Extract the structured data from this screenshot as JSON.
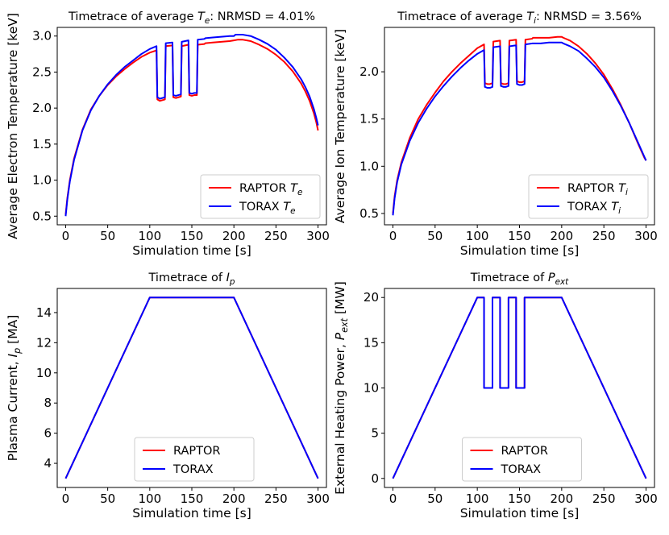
{
  "chart_data": [
    {
      "id": "te",
      "type": "line",
      "title": "Timetrace of average T_e: NRMSD = 4.01%",
      "title_parts": [
        {
          "t": "Timetrace of average "
        },
        {
          "t": "T",
          "i": true
        },
        {
          "t": "e",
          "sub": true,
          "i": true
        },
        {
          "t": ": NRMSD = 4.01%"
        }
      ],
      "xlabel": "Simulation time [s]",
      "ylabel": "Average Electron Temperature [keV]",
      "xlim": [
        -10,
        310
      ],
      "ylim": [
        0.38,
        3.12
      ],
      "xticks": [
        0,
        50,
        100,
        150,
        200,
        250,
        300
      ],
      "yticks": [
        0.5,
        1.0,
        1.5,
        2.0,
        2.5,
        3.0
      ],
      "ytick_labels": [
        "0.5",
        "1.0",
        "1.5",
        "2.0",
        "2.5",
        "3.0"
      ],
      "legend_position": "lower-right",
      "series": [
        {
          "name": "RAPTOR T_e",
          "name_parts": [
            {
              "t": "RAPTOR "
            },
            {
              "t": "T",
              "i": true
            },
            {
              "t": "e",
              "sub": true,
              "i": true
            }
          ],
          "color": "#ff0000",
          "x": [
            0,
            2,
            5,
            10,
            20,
            30,
            40,
            50,
            60,
            70,
            80,
            90,
            100,
            108,
            109,
            112,
            115,
            118,
            119,
            127,
            128,
            131,
            134,
            137,
            138,
            146,
            147,
            150,
            153,
            156,
            157,
            165,
            166,
            175,
            185,
            195,
            200,
            205,
            210,
            220,
            230,
            240,
            250,
            260,
            270,
            280,
            285,
            290,
            295,
            298,
            300
          ],
          "y": [
            0.52,
            0.75,
            1.0,
            1.3,
            1.7,
            1.98,
            2.17,
            2.32,
            2.44,
            2.54,
            2.63,
            2.71,
            2.77,
            2.8,
            2.12,
            2.1,
            2.11,
            2.12,
            2.86,
            2.87,
            2.15,
            2.14,
            2.15,
            2.16,
            2.86,
            2.88,
            2.18,
            2.17,
            2.18,
            2.18,
            2.88,
            2.89,
            2.9,
            2.91,
            2.92,
            2.93,
            2.94,
            2.95,
            2.95,
            2.93,
            2.88,
            2.82,
            2.74,
            2.64,
            2.51,
            2.34,
            2.23,
            2.1,
            1.93,
            1.8,
            1.69
          ]
        },
        {
          "name": "TORAX T_e",
          "name_parts": [
            {
              "t": "TORAX "
            },
            {
              "t": "T",
              "i": true
            },
            {
              "t": "e",
              "sub": true,
              "i": true
            }
          ],
          "color": "#0000ff",
          "x": [
            0,
            2,
            5,
            10,
            20,
            30,
            40,
            50,
            60,
            70,
            80,
            90,
            100,
            108,
            109,
            112,
            115,
            118,
            119,
            127,
            128,
            131,
            134,
            137,
            138,
            146,
            147,
            150,
            153,
            156,
            157,
            165,
            166,
            175,
            185,
            195,
            200,
            202,
            205,
            210,
            220,
            230,
            240,
            250,
            260,
            270,
            280,
            285,
            290,
            295,
            298,
            300
          ],
          "y": [
            0.5,
            0.73,
            0.98,
            1.28,
            1.69,
            1.97,
            2.17,
            2.33,
            2.46,
            2.57,
            2.66,
            2.75,
            2.82,
            2.86,
            2.15,
            2.13,
            2.14,
            2.15,
            2.9,
            2.91,
            2.18,
            2.17,
            2.18,
            2.19,
            2.92,
            2.94,
            2.21,
            2.2,
            2.21,
            2.21,
            2.95,
            2.96,
            2.97,
            2.98,
            2.99,
            3.0,
            3.0,
            3.02,
            3.02,
            3.02,
            3.0,
            2.95,
            2.89,
            2.81,
            2.7,
            2.57,
            2.4,
            2.29,
            2.16,
            1.99,
            1.86,
            1.76
          ]
        }
      ]
    },
    {
      "id": "ti",
      "type": "line",
      "title": "Timetrace of average T_i: NRMSD = 3.56%",
      "title_parts": [
        {
          "t": "Timetrace of average "
        },
        {
          "t": "T",
          "i": true
        },
        {
          "t": "i",
          "sub": true,
          "i": true
        },
        {
          "t": ": NRMSD = 3.56%"
        }
      ],
      "xlabel": "Simulation time [s]",
      "ylabel": "Average Ion Temperature [keV]",
      "xlim": [
        -10,
        310
      ],
      "ylim": [
        0.38,
        2.47
      ],
      "xticks": [
        0,
        50,
        100,
        150,
        200,
        250,
        300
      ],
      "yticks": [
        0.5,
        1.0,
        1.5,
        2.0
      ],
      "ytick_labels": [
        "0.5",
        "1.0",
        "1.5",
        "2.0"
      ],
      "legend_position": "lower-right",
      "series": [
        {
          "name": "RAPTOR T_i",
          "name_parts": [
            {
              "t": "RAPTOR "
            },
            {
              "t": "T",
              "i": true
            },
            {
              "t": "i",
              "sub": true,
              "i": true
            }
          ],
          "color": "#ff0000",
          "x": [
            0,
            2,
            5,
            10,
            20,
            30,
            40,
            50,
            60,
            70,
            80,
            90,
            100,
            108,
            109,
            112,
            115,
            118,
            119,
            127,
            128,
            131,
            134,
            137,
            138,
            146,
            147,
            150,
            153,
            156,
            157,
            165,
            166,
            175,
            185,
            195,
            200,
            202,
            210,
            220,
            230,
            240,
            250,
            260,
            270,
            280,
            290,
            295,
            298,
            300
          ],
          "y": [
            0.5,
            0.68,
            0.85,
            1.04,
            1.3,
            1.5,
            1.65,
            1.78,
            1.9,
            2.0,
            2.09,
            2.17,
            2.25,
            2.29,
            1.88,
            1.87,
            1.87,
            1.88,
            2.32,
            2.33,
            1.88,
            1.87,
            1.87,
            1.88,
            2.33,
            2.34,
            1.9,
            1.89,
            1.89,
            1.9,
            2.34,
            2.35,
            2.36,
            2.36,
            2.36,
            2.37,
            2.37,
            2.36,
            2.33,
            2.27,
            2.19,
            2.09,
            1.97,
            1.82,
            1.65,
            1.46,
            1.25,
            1.15,
            1.09,
            1.06
          ]
        },
        {
          "name": "TORAX T_i",
          "name_parts": [
            {
              "t": "TORAX "
            },
            {
              "t": "T",
              "i": true
            },
            {
              "t": "i",
              "sub": true,
              "i": true
            }
          ],
          "color": "#0000ff",
          "x": [
            0,
            2,
            5,
            10,
            20,
            30,
            40,
            50,
            60,
            70,
            80,
            90,
            100,
            108,
            109,
            112,
            115,
            118,
            119,
            127,
            128,
            131,
            134,
            137,
            138,
            146,
            147,
            150,
            153,
            156,
            157,
            165,
            166,
            175,
            185,
            195,
            200,
            202,
            210,
            220,
            230,
            240,
            250,
            260,
            270,
            280,
            290,
            295,
            298,
            300
          ],
          "y": [
            0.48,
            0.66,
            0.83,
            1.02,
            1.27,
            1.46,
            1.61,
            1.74,
            1.85,
            1.95,
            2.04,
            2.12,
            2.19,
            2.23,
            1.84,
            1.83,
            1.83,
            1.84,
            2.26,
            2.27,
            1.85,
            1.84,
            1.84,
            1.85,
            2.27,
            2.28,
            1.87,
            1.86,
            1.86,
            1.87,
            2.29,
            2.3,
            2.3,
            2.3,
            2.31,
            2.31,
            2.31,
            2.3,
            2.27,
            2.22,
            2.14,
            2.05,
            1.94,
            1.8,
            1.64,
            1.46,
            1.26,
            1.16,
            1.1,
            1.06
          ]
        }
      ]
    },
    {
      "id": "ip",
      "type": "line",
      "title": "Timetrace of I_p",
      "title_parts": [
        {
          "t": "Timetrace of "
        },
        {
          "t": "I",
          "i": true
        },
        {
          "t": "p",
          "sub": true,
          "i": true
        }
      ],
      "xlabel": "Simulation time [s]",
      "ylabel": "Plasma Current, I_p [MA]",
      "ylabel_parts": [
        {
          "t": "Plasma Current, "
        },
        {
          "t": "I",
          "i": true
        },
        {
          "t": "p",
          "sub": true,
          "i": true
        },
        {
          "t": " [MA]"
        }
      ],
      "xlim": [
        -10,
        310
      ],
      "ylim": [
        2.4,
        15.6
      ],
      "xticks": [
        0,
        50,
        100,
        150,
        200,
        250,
        300
      ],
      "yticks": [
        4,
        6,
        8,
        10,
        12,
        14
      ],
      "ytick_labels": [
        "4",
        "6",
        "8",
        "10",
        "12",
        "14"
      ],
      "legend_position": "lower-center",
      "series": [
        {
          "name": "RAPTOR",
          "color": "#ff0000",
          "x": [
            0,
            100,
            200,
            300
          ],
          "y": [
            3,
            15,
            15,
            3
          ]
        },
        {
          "name": "TORAX",
          "color": "#0000ff",
          "x": [
            0,
            100,
            200,
            300
          ],
          "y": [
            3,
            15,
            15,
            3
          ]
        }
      ]
    },
    {
      "id": "pext",
      "type": "line",
      "title": "Timetrace of P_ext",
      "title_parts": [
        {
          "t": "Timetrace of "
        },
        {
          "t": "P",
          "i": true
        },
        {
          "t": "ext",
          "sub": true,
          "i": true
        }
      ],
      "xlabel": "Simulation time [s]",
      "ylabel": "External Heating Power, P_ext [MW]",
      "ylabel_parts": [
        {
          "t": "External Heating Power, "
        },
        {
          "t": "P",
          "i": true
        },
        {
          "t": "ext",
          "sub": true,
          "i": true
        },
        {
          "t": " [MW]"
        }
      ],
      "xlim": [
        -10,
        310
      ],
      "ylim": [
        -1,
        21
      ],
      "xticks": [
        0,
        50,
        100,
        150,
        200,
        250,
        300
      ],
      "yticks": [
        0,
        5,
        10,
        15,
        20
      ],
      "ytick_labels": [
        "0",
        "5",
        "10",
        "15",
        "20"
      ],
      "legend_position": "lower-center",
      "series": [
        {
          "name": "RAPTOR",
          "color": "#ff0000",
          "x": [
            0,
            100,
            108,
            108,
            118,
            118,
            127,
            127,
            137,
            137,
            146,
            146,
            156,
            156,
            165,
            165,
            200,
            300
          ],
          "y": [
            0,
            20,
            20,
            10,
            10,
            20,
            20,
            10,
            10,
            20,
            20,
            10,
            10,
            20,
            20,
            20,
            20,
            0
          ]
        },
        {
          "name": "TORAX",
          "color": "#0000ff",
          "x": [
            0,
            100,
            108,
            108,
            118,
            118,
            127,
            127,
            137,
            137,
            146,
            146,
            156,
            156,
            165,
            165,
            200,
            300
          ],
          "y": [
            0,
            20,
            20,
            10,
            10,
            20,
            20,
            10,
            10,
            20,
            20,
            10,
            10,
            20,
            20,
            20,
            20,
            0
          ]
        }
      ]
    }
  ]
}
